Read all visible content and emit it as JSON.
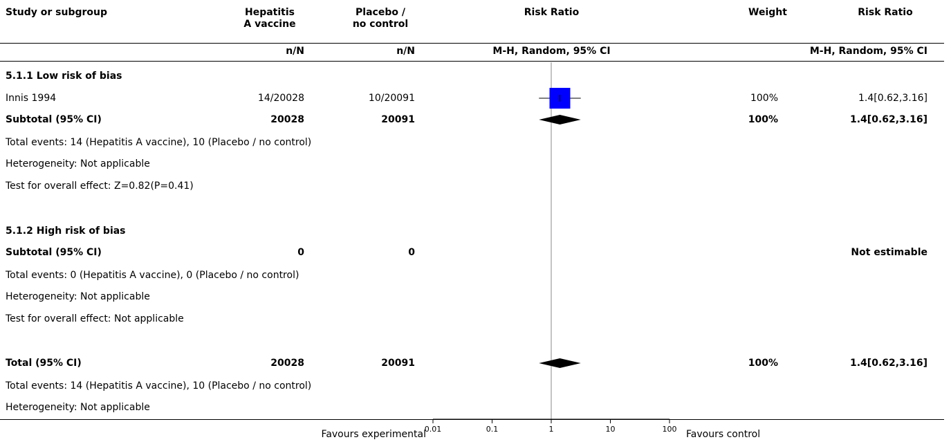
{
  "header": {
    "study_col": "Study or subgroup",
    "exp_col": [
      "Hepatitis",
      "A vaccine"
    ],
    "ctl_col": [
      "Placebo /",
      "no control"
    ],
    "rr_col": "Risk Ratio",
    "weight_col": "Weight",
    "rr2_col": "Risk Ratio",
    "exp_sub": "n/N",
    "ctl_sub": "n/N",
    "rr_sub": "M-H, Random, 95% CI",
    "rr2_sub": "M-H, Random, 95% CI"
  },
  "groups": [
    {
      "title": "5.1.1 Low risk of bias",
      "studies": [
        {
          "name": "Innis 1994",
          "exp": "14/20028",
          "ctl": "10/20091",
          "weight": "100%",
          "ci_text": "1.4[0.62,3.16]"
        }
      ],
      "subtotal": {
        "label": "Subtotal (95% CI)",
        "exp": "20028",
        "ctl": "20091",
        "weight": "100%",
        "ci_text": "1.4[0.62,3.16]"
      },
      "events": "Total events: 14 (Hepatitis A vaccine), 10 (Placebo / no control)",
      "heterogeneity": "Heterogeneity: Not applicable",
      "overall": "Test for overall effect: Z=0.82(P=0.41)"
    },
    {
      "title": "5.1.2 High risk of bias",
      "subtotal": {
        "label": "Subtotal (95% CI)",
        "exp": "0",
        "ctl": "0",
        "weight": "",
        "ci_text": "Not estimable"
      },
      "events": "Total events: 0 (Hepatitis A vaccine), 0 (Placebo / no control)",
      "heterogeneity": "Heterogeneity: Not applicable",
      "overall": "Test for overall effect: Not applicable"
    }
  ],
  "total": {
    "label": "Total (95% CI)",
    "exp": "20028",
    "ctl": "20091",
    "weight": "100%",
    "ci_text": "1.4[0.62,3.16]",
    "events": "Total events: 14 (Hepatitis A vaccine), 10 (Placebo / no control)",
    "heterogeneity": "Heterogeneity: Not applicable"
  },
  "footer": {
    "favours_left": "Favours experimental",
    "favours_right": "Favours control"
  },
  "colors": {
    "study_marker": "#0000ff",
    "diamond": "#000000",
    "null_line": "#888888"
  },
  "chart_data": {
    "type": "forest",
    "scale": "log",
    "xlim": [
      0.01,
      100
    ],
    "x_ticks": [
      "0.01",
      "0.1",
      "1",
      "10",
      "100"
    ],
    "null_value": 1,
    "rows": [
      {
        "label": "Innis 1994",
        "kind": "study",
        "rr": 1.4,
        "lo": 0.62,
        "hi": 3.16,
        "weight": 100
      },
      {
        "label": "Subtotal (95% CI)",
        "kind": "diamond",
        "rr": 1.4,
        "lo": 0.62,
        "hi": 3.16
      },
      {
        "label": "Total (95% CI)",
        "kind": "diamond",
        "rr": 1.4,
        "lo": 0.62,
        "hi": 3.16
      }
    ]
  }
}
